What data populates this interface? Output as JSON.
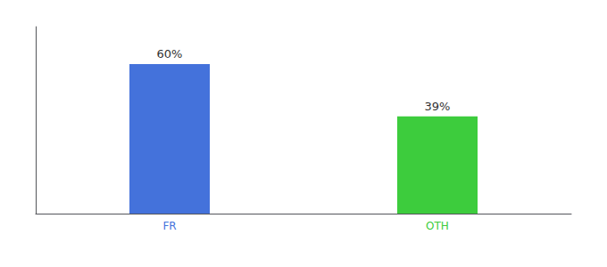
{
  "chart_data": {
    "type": "bar",
    "categories": [
      "FR",
      "OTH"
    ],
    "values": [
      60,
      39
    ],
    "value_labels": [
      "60%",
      "39%"
    ],
    "colors": [
      "#4472db",
      "#3dcc3d"
    ],
    "ylim": [
      0,
      75
    ],
    "grid": false,
    "data_labels": true,
    "tick_labels": "x"
  }
}
